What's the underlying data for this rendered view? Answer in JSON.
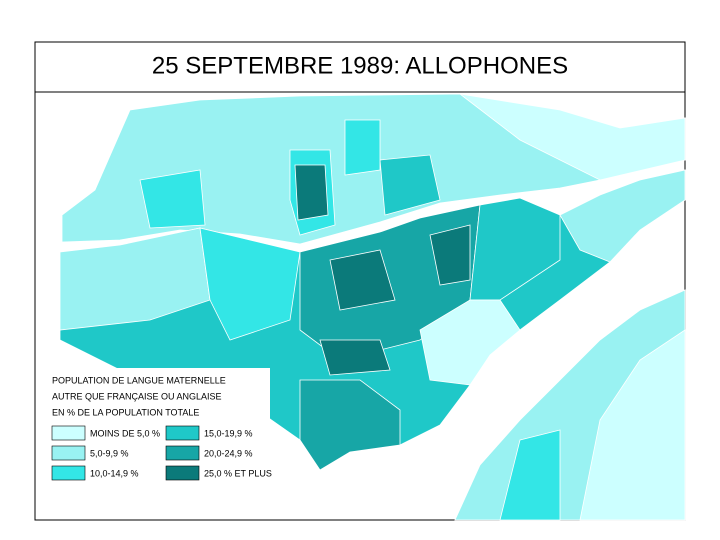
{
  "title": "25 SEPTEMBRE 1989: ALLOPHONES",
  "legend": {
    "heading": [
      "POPULATION DE LANGUE MATERNELLE",
      "AUTRE QUE FRANÇAISE OU ANGLAISE",
      "EN % DE LA POPULATION TOTALE"
    ],
    "entries": [
      {
        "label": "MOINS DE 5,0 %",
        "color": "#ccffff"
      },
      {
        "label": "5,0-9,9 %",
        "color": "#99f2f2"
      },
      {
        "label": "10,0-14,9 %",
        "color": "#33e6e6"
      },
      {
        "label": "15,0-19,9 %",
        "color": "#1fc8c8"
      },
      {
        "label": "20,0-24,9 %",
        "color": "#17a6a6"
      },
      {
        "label": "25,0 % ET PLUS",
        "color": "#0b7a7a"
      }
    ]
  }
}
